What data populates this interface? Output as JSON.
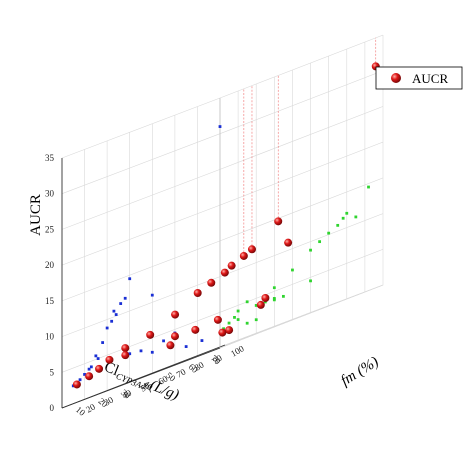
{
  "chart_data": {
    "type": "scatter",
    "subtype": "3d-scatter-with-wall-projections",
    "axes": {
      "x": {
        "label_main": "Cl",
        "label_sub": "CYP3A4",
        "label_unit": " (L/g)",
        "range": [
          0,
          70
        ],
        "ticks": [
          0,
          10,
          20,
          30,
          40,
          50,
          60,
          70
        ]
      },
      "y": {
        "label": "fm (%)",
        "range": [
          10,
          100
        ],
        "ticks": [
          20,
          30,
          40,
          50,
          60,
          70,
          80,
          90,
          100
        ]
      },
      "z": {
        "label": "AUCR",
        "range": [
          0,
          35
        ],
        "ticks": [
          0,
          5,
          10,
          15,
          20,
          25,
          30,
          35
        ]
      }
    },
    "grid": true,
    "legend": {
      "position": "top-right",
      "entries": [
        "AUCR"
      ]
    },
    "series": [
      {
        "name": "AUCR",
        "color": "#e01818",
        "points": [
          [
            5,
            12,
            2.5
          ],
          [
            8,
            15,
            3.0
          ],
          [
            10,
            18,
            3.5
          ],
          [
            13,
            20,
            4.2
          ],
          [
            16,
            25,
            5.0
          ],
          [
            12,
            30,
            4.0
          ],
          [
            15,
            40,
            5.5
          ],
          [
            18,
            50,
            7.0
          ],
          [
            20,
            60,
            8.8
          ],
          [
            22,
            65,
            9.5
          ],
          [
            24,
            70,
            10.2
          ],
          [
            23,
            75,
            10.8
          ],
          [
            26,
            78,
            11.5
          ],
          [
            28,
            80,
            12.0
          ],
          [
            30,
            35,
            4.0
          ],
          [
            35,
            40,
            3.8
          ],
          [
            45,
            40,
            4.0
          ],
          [
            40,
            85,
            11.0
          ],
          [
            30,
            92,
            14.5
          ],
          [
            50,
            60,
            4.5
          ],
          [
            40,
            20,
            3.0
          ],
          [
            60,
            45,
            3.8
          ],
          [
            70,
            96,
            31.0
          ],
          [
            55,
            30,
            2.0
          ],
          [
            62,
            25,
            2.0
          ]
        ]
      }
    ]
  }
}
